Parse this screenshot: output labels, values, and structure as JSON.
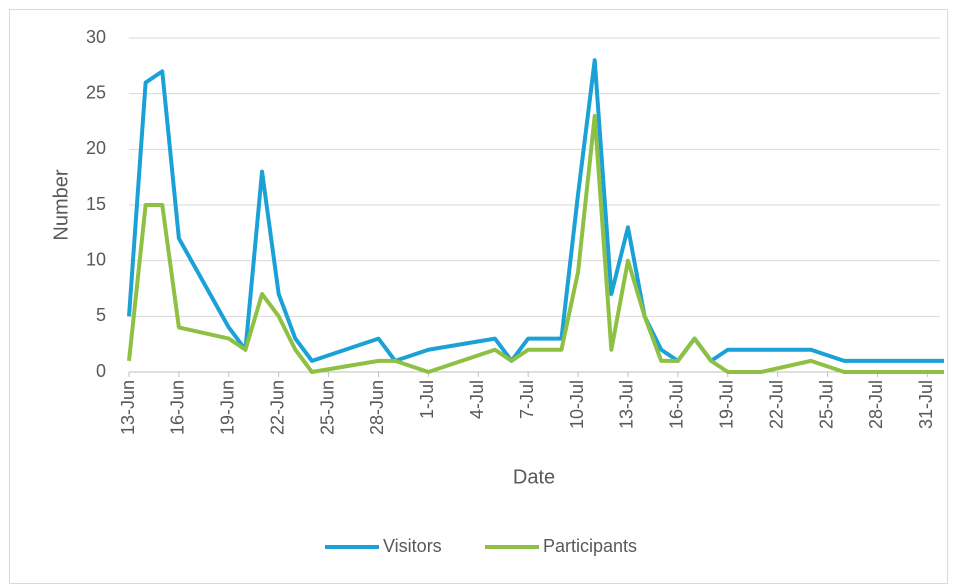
{
  "chart_data": {
    "type": "line",
    "x_label": "Date",
    "y_label": "Number",
    "x": [
      "13-Jun",
      "14-Jun",
      "15-Jun",
      "16-Jun",
      "19-Jun",
      "20-Jun",
      "21-Jun",
      "22-Jun",
      "23-Jun",
      "24-Jun",
      "28-Jun",
      "29-Jun",
      "1-Jul",
      "5-Jul",
      "6-Jul",
      "7-Jul",
      "9-Jul",
      "10-Jul",
      "11-Jul",
      "12-Jul",
      "13-Jul",
      "14-Jul",
      "15-Jul",
      "16-Jul",
      "17-Jul",
      "18-Jul",
      "19-Jul",
      "21-Jul",
      "24-Jul",
      "26-Jul",
      "1-Aug"
    ],
    "series": [
      {
        "name": "Visitors",
        "color": "#1aa1d6",
        "values": [
          5,
          26,
          27,
          12,
          4,
          2,
          18,
          7,
          3,
          1,
          3,
          1,
          2,
          3,
          1,
          3,
          3,
          16,
          28,
          7,
          13,
          5,
          2,
          1,
          3,
          1,
          2,
          2,
          2,
          1,
          1
        ]
      },
      {
        "name": "Participants",
        "color": "#8dc043",
        "values": [
          1,
          15,
          15,
          4,
          3,
          2,
          7,
          5,
          2,
          0,
          1,
          1,
          0,
          2,
          1,
          2,
          2,
          9,
          23,
          2,
          10,
          5,
          1,
          1,
          3,
          1,
          0,
          0,
          1,
          0,
          0
        ]
      }
    ],
    "xlim": [
      "13-Jun",
      "1-Aug"
    ],
    "xticks": [
      "13-Jun",
      "16-Jun",
      "19-Jun",
      "22-Jun",
      "25-Jun",
      "28-Jun",
      "1-Jul",
      "4-Jul",
      "7-Jul",
      "10-Jul",
      "13-Jul",
      "16-Jul",
      "19-Jul",
      "22-Jul",
      "25-Jul",
      "28-Jul",
      "31-Jul"
    ],
    "ylim": [
      0,
      30
    ],
    "yticks": [
      0,
      5,
      10,
      15,
      20,
      25,
      30
    ],
    "grid": true,
    "legend": "bottom"
  }
}
